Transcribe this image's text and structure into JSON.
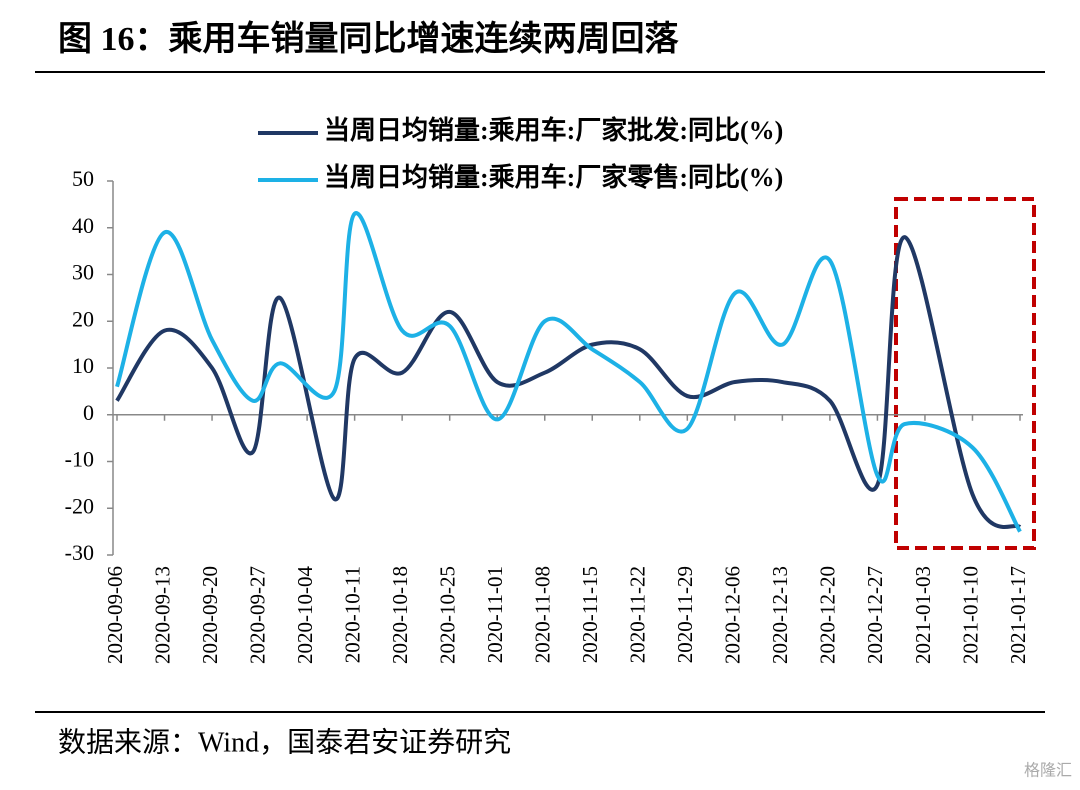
{
  "chart_data": {
    "type": "line",
    "title": "图 16：乘用车销量同比增速连续两周回落",
    "source": "数据来源：Wind，国泰君安证券研究",
    "watermark": "格隆汇",
    "x": [
      "2020-09-06",
      "2020-09-13",
      "2020-09-20",
      "2020-09-26",
      "2020-09-30",
      "2020-10-08",
      "2020-10-11",
      "2020-10-18",
      "2020-10-25",
      "2020-11-01",
      "2020-11-08",
      "2020-11-15",
      "2020-11-22",
      "2020-11-29",
      "2020-12-06",
      "2020-12-13",
      "2020-12-20",
      "2020-12-27",
      "2020-12-31",
      "2021-01-10",
      "2021-01-17"
    ],
    "series": [
      {
        "name": "当周日均销量:乘用车:厂家批发:同比(%)",
        "color": "#203864",
        "values": [
          3,
          18,
          10,
          -8,
          25,
          -18,
          12,
          9,
          22,
          7,
          9,
          15,
          14,
          4,
          7,
          7,
          3,
          -15,
          38,
          -17,
          -24
        ]
      },
      {
        "name": "当周日均销量:乘用车:厂家零售:同比(%)",
        "color": "#1db1e6",
        "values": [
          6,
          39,
          16,
          3,
          11,
          5,
          43,
          18,
          19,
          -1,
          20,
          14,
          7,
          -3,
          26,
          15,
          33,
          -13,
          -2,
          -7,
          -25
        ]
      }
    ],
    "xlim": [
      "2020-09-06",
      "2021-01-17"
    ],
    "xticks": [
      "2020-09-06",
      "2020-09-13",
      "2020-09-20",
      "2020-09-27",
      "2020-10-04",
      "2020-10-11",
      "2020-10-18",
      "2020-10-25",
      "2020-11-01",
      "2020-11-08",
      "2020-11-15",
      "2020-11-22",
      "2020-11-29",
      "2020-12-06",
      "2020-12-13",
      "2020-12-20",
      "2020-12-27",
      "2021-01-03",
      "2021-01-10",
      "2021-01-17"
    ],
    "ylim": [
      -30,
      50
    ],
    "yticks": [
      -30,
      -20,
      -10,
      0,
      10,
      20,
      30,
      40,
      50
    ]
  }
}
